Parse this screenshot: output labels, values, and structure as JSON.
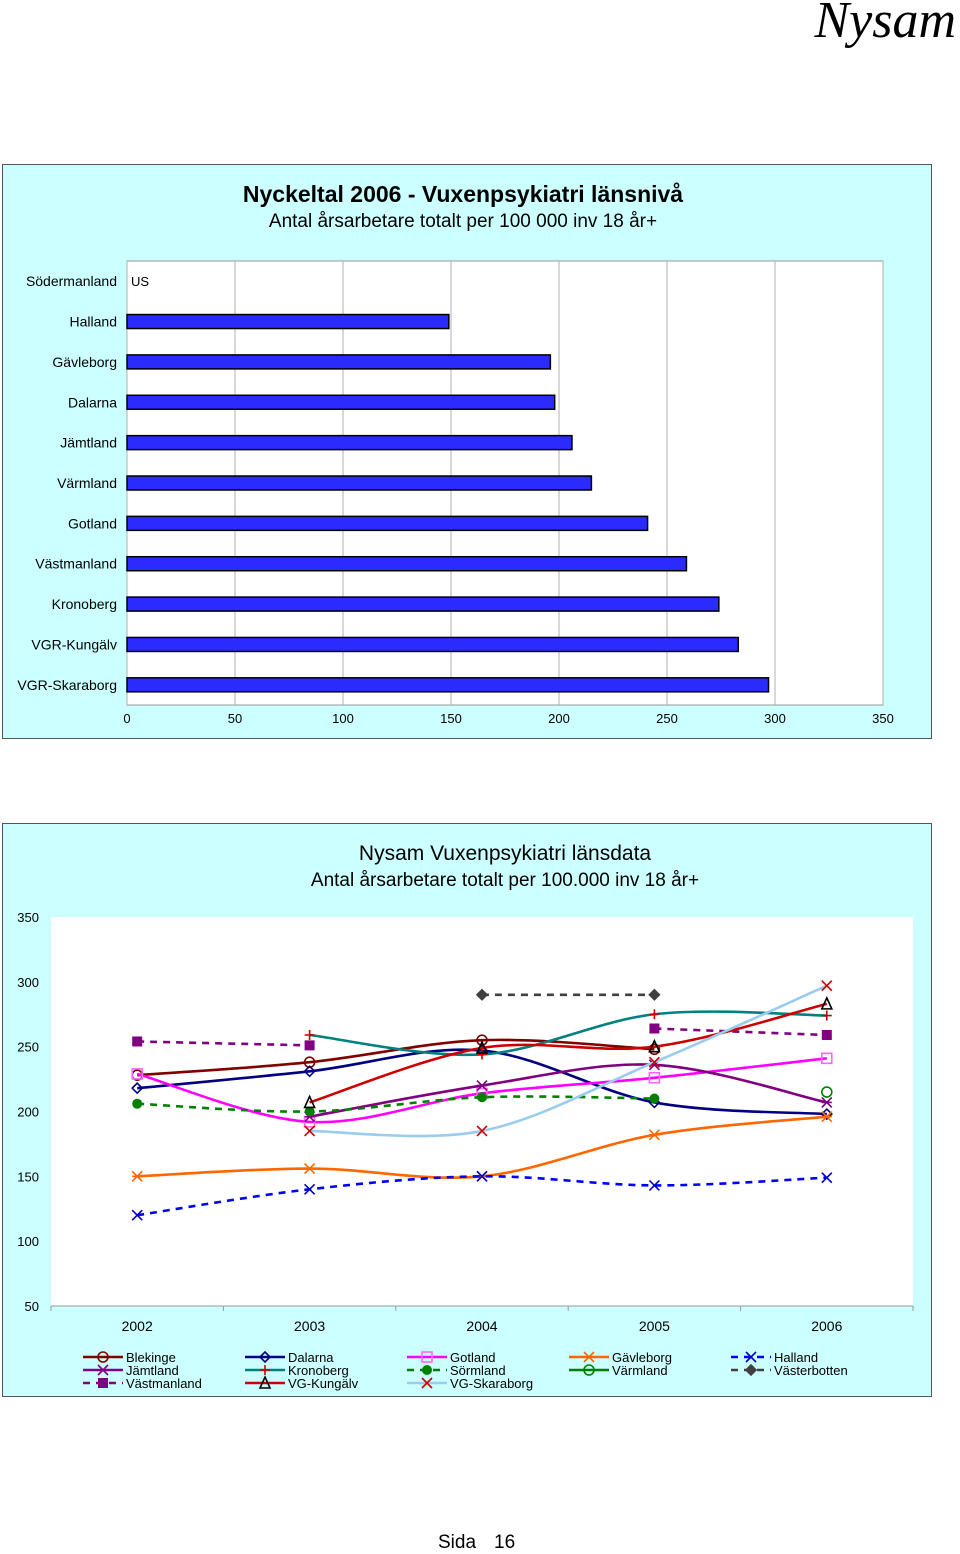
{
  "header": {
    "brand": "Nysam"
  },
  "footer": {
    "label": "Sida",
    "page": "16"
  },
  "chart_data": [
    {
      "type": "bar",
      "orientation": "horizontal",
      "title": "Nyckeltal 2006  -  Vuxenpsykiatri länsnivå",
      "subtitle": "Antal årsarbetare totalt per 100 000 inv 18 år+",
      "categories": [
        "Södermanland",
        "Halland",
        "Gävleborg",
        "Dalarna",
        "Jämtland",
        "Värmland",
        "Gotland",
        "Västmanland",
        "Kronoberg",
        "VGR-Kungälv",
        "VGR-Skaraborg"
      ],
      "values": [
        null,
        149,
        196,
        198,
        206,
        215,
        241,
        259,
        274,
        283,
        297
      ],
      "annotations": {
        "Södermanland": "US"
      },
      "xlim": [
        0,
        350
      ],
      "xticks": [
        "0",
        "50",
        "100",
        "150",
        "200",
        "250",
        "300",
        "350"
      ],
      "bar_color": "#2b2bff",
      "grid": true
    },
    {
      "type": "line",
      "title": "Nysam Vuxenpsykiatri länsdata",
      "subtitle": "Antal årsarbetare totalt per 100.000 inv 18 år+",
      "x": [
        "2002",
        "2003",
        "2004",
        "2005",
        "2006"
      ],
      "yticks": [
        "350",
        "300",
        "250",
        "200",
        "150",
        "100",
        "50"
      ],
      "ylim": [
        50,
        350
      ],
      "grid": false,
      "legend": "bottom",
      "series": [
        {
          "name": "Blekinge",
          "values": [
            228,
            238,
            255,
            248,
            null
          ],
          "color": "#800000",
          "marker": "circle",
          "dash": false
        },
        {
          "name": "Dalarna",
          "values": [
            218,
            231,
            247,
            207,
            198
          ],
          "color": "#000080",
          "marker": "diamond",
          "dash": false
        },
        {
          "name": "Gotland",
          "values": [
            229,
            192,
            214,
            226,
            241
          ],
          "color": "#ff00ff",
          "marker": "square",
          "dash": false
        },
        {
          "name": "Gävleborg",
          "values": [
            150,
            156,
            150,
            182,
            196
          ],
          "color": "#ff6600",
          "marker": "asterisk",
          "dash": false
        },
        {
          "name": "Halland",
          "values": [
            120,
            140,
            150,
            143,
            149
          ],
          "color": "#0000ff",
          "marker": "x",
          "dash": true
        },
        {
          "name": "Jämtland",
          "values": [
            null,
            196,
            220,
            236,
            207
          ],
          "color": "#800080",
          "marker": "asterisk",
          "dash": false
        },
        {
          "name": "Kronoberg",
          "values": [
            null,
            259,
            244,
            275,
            274
          ],
          "color": "#008080",
          "marker": "plus",
          "dash": false
        },
        {
          "name": "Sörmland",
          "values": [
            206,
            200,
            211,
            210,
            null
          ],
          "color": "#008000",
          "marker": "dot",
          "dash": true
        },
        {
          "name": "Värmland",
          "values": [
            null,
            null,
            null,
            null,
            215
          ],
          "color": "#008000",
          "marker": "circle",
          "dash": false
        },
        {
          "name": "Västerbotten",
          "values": [
            null,
            null,
            290,
            290,
            null
          ],
          "color": "#404040",
          "marker": "diamond",
          "dash": true
        },
        {
          "name": "Västmanland",
          "values": [
            254,
            251,
            null,
            264,
            259
          ],
          "color": "#800080",
          "marker": "square-filled",
          "dash": true
        },
        {
          "name": "VG-Kungälv",
          "values": [
            null,
            207,
            249,
            250,
            283
          ],
          "color": "#cc0000",
          "marker": "triangle",
          "dash": false
        },
        {
          "name": "VG-Skaraborg",
          "values": [
            null,
            185,
            185,
            238,
            297
          ],
          "color": "#99ccee",
          "marker": "x",
          "dash": false
        }
      ],
      "marker_colors": {
        "Blekinge": "#800000",
        "Dalarna": "#000080",
        "Gotland": "#ff66ff",
        "Gävleborg": "#ff6600",
        "Halland": "#0000cc",
        "Jämtland": "#800080",
        "Kronoberg": "#cc0000",
        "Sörmland": "#008000",
        "Värmland": "#008000",
        "Västerbotten": "#404040",
        "Västmanland": "#800080",
        "VG-Kungälv": "#000000",
        "VG-Skaraborg": "#cc0000"
      }
    }
  ]
}
